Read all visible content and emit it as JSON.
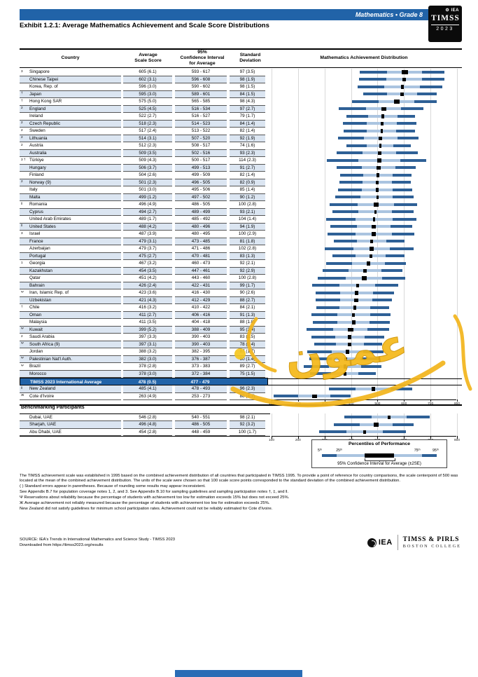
{
  "header": {
    "banner": "Mathematics • Grade 8",
    "exhibit_title": "Exhibit 1.2.1: Average Mathematics Achievement and Scale Score Distributions",
    "logo": {
      "iea": "IEA",
      "timss": "TIMSS",
      "year": "2023",
      "gear_icon": "⚙"
    }
  },
  "table": {
    "headers": {
      "country": "Country",
      "avg": "Average\nScale Score",
      "ci": "95%\nConfidence Interval\nfor Average",
      "sd": "Standard\nDeviation",
      "dist": "Mathematics Achievement Distribution"
    },
    "rows": [
      {
        "n": "3",
        "c": "Singapore",
        "a": "605 (6.1)",
        "i": "593 - 617",
        "s": "97 (3.5)",
        "d": [
          435,
          538,
          671,
          755,
          593,
          617
        ],
        "sh": false
      },
      {
        "n": "",
        "c": "Chinese Taipei",
        "a": "602 (3.1)",
        "i": "596 - 608",
        "s": "98 (1.9)",
        "d": [
          431,
          534,
          669,
          754,
          596,
          608
        ],
        "sh": true
      },
      {
        "n": "",
        "c": "Korea, Rep. of",
        "a": "596 (3.0)",
        "i": "590 - 602",
        "s": "98 (1.5)",
        "d": [
          425,
          528,
          663,
          748,
          590,
          602
        ],
        "sh": false
      },
      {
        "n": "†",
        "c": "Japan",
        "a": "595 (3.0)",
        "i": "589 - 601",
        "s": "84 (1.5)",
        "d": [
          448,
          537,
          652,
          725,
          589,
          601
        ],
        "sh": true
      },
      {
        "n": "†",
        "c": "Hong Kong SAR",
        "a": "575 (5.0)",
        "i": "565 - 585",
        "s": "98 (4.3)",
        "d": [
          404,
          507,
          642,
          727,
          565,
          585
        ],
        "sh": false
      },
      {
        "n": "2",
        "c": "England",
        "a": "525 (4.5)",
        "i": "516 - 534",
        "s": "97 (2.7)",
        "d": [
          355,
          458,
          591,
          675,
          516,
          534
        ],
        "sh": true
      },
      {
        "n": "",
        "c": "Ireland",
        "a": "522 (2.7)",
        "i": "516 - 527",
        "s": "79 (1.7)",
        "d": [
          384,
          467,
          576,
          644,
          516,
          527
        ],
        "sh": false
      },
      {
        "n": "2",
        "c": "Czech Republic",
        "a": "518 (2.3)",
        "i": "514 - 523",
        "s": "84 (1.4)",
        "d": [
          371,
          460,
          575,
          648,
          514,
          523
        ],
        "sh": true
      },
      {
        "n": "2",
        "c": "Sweden",
        "a": "517 (2.4)",
        "i": "513 - 522",
        "s": "82 (1.4)",
        "d": [
          374,
          460,
          573,
          644,
          513,
          522
        ],
        "sh": false
      },
      {
        "n": "2",
        "c": "Lithuania",
        "a": "514 (3.1)",
        "i": "507 - 520",
        "s": "92 (1.9)",
        "d": [
          353,
          451,
          577,
          657,
          507,
          520
        ],
        "sh": true
      },
      {
        "n": "2",
        "c": "Austria",
        "a": "512 (2.3)",
        "i": "508 - 517",
        "s": "74 (1.6)",
        "d": [
          383,
          461,
          562,
          627,
          508,
          517
        ],
        "sh": false
      },
      {
        "n": "",
        "c": "Australia",
        "a": "509 (3.5)",
        "i": "502 - 516",
        "s": "93 (2.3)",
        "d": [
          346,
          445,
          572,
          653,
          502,
          516
        ],
        "sh": true
      },
      {
        "n": "3 †",
        "c": "Türkiye",
        "a": "509 (4.3)",
        "i": "500 - 517",
        "s": "114 (2.3)",
        "d": [
          310,
          430,
          587,
          686,
          500,
          517
        ],
        "sh": false
      },
      {
        "n": "",
        "c": "Hungary",
        "a": "506 (3.7)",
        "i": "499 - 513",
        "s": "91 (2.7)",
        "d": [
          347,
          443,
          568,
          647,
          499,
          513
        ],
        "sh": true
      },
      {
        "n": "",
        "c": "Finland",
        "a": "504 (2.6)",
        "i": "499 - 509",
        "s": "82 (1.4)",
        "d": [
          361,
          447,
          560,
          631,
          499,
          509
        ],
        "sh": false
      },
      {
        "n": "2",
        "c": "Norway (9)",
        "a": "501 (2.3)",
        "i": "496 - 505",
        "s": "82 (0.9)",
        "d": [
          358,
          444,
          557,
          628,
          496,
          505
        ],
        "sh": true
      },
      {
        "n": "",
        "c": "Italy",
        "a": "501 (3.0)",
        "i": "495 - 506",
        "s": "85 (1.4)",
        "d": [
          352,
          442,
          559,
          633,
          495,
          506
        ],
        "sh": false
      },
      {
        "n": "",
        "c": "Malta",
        "a": "499 (1.2)",
        "i": "497 - 502",
        "s": "90 (1.2)",
        "d": [
          342,
          437,
          560,
          639,
          497,
          502
        ],
        "sh": true
      },
      {
        "n": "ǁ",
        "c": "Romania",
        "a": "496 (4.9)",
        "i": "486 - 505",
        "s": "100 (2.8)",
        "d": [
          321,
          427,
          564,
          651,
          486,
          505
        ],
        "sh": false
      },
      {
        "n": "",
        "c": "Cyprus",
        "a": "494 (2.7)",
        "i": "489 - 499",
        "s": "93 (2.1)",
        "d": [
          331,
          430,
          557,
          638,
          489,
          499
        ],
        "sh": true
      },
      {
        "n": "",
        "c": "United Arab Emirates",
        "a": "489 (1.7)",
        "i": "485 - 492",
        "s": "104 (1.4)",
        "d": [
          307,
          417,
          560,
          650,
          485,
          492
        ],
        "sh": false
      },
      {
        "n": "ǁ",
        "c": "United States",
        "a": "488 (4.2)",
        "i": "480 - 496",
        "s": "94 (1.9)",
        "d": [
          324,
          423,
          552,
          634,
          480,
          496
        ],
        "sh": true
      },
      {
        "n": "3",
        "c": "Israel",
        "a": "487 (3.9)",
        "i": "480 - 495",
        "s": "100 (2.9)",
        "d": [
          312,
          418,
          555,
          642,
          480,
          495
        ],
        "sh": false
      },
      {
        "n": "",
        "c": "France",
        "a": "479 (3.1)",
        "i": "473 - 485",
        "s": "81 (1.8)",
        "d": [
          337,
          423,
          534,
          605,
          473,
          485
        ],
        "sh": true
      },
      {
        "n": "",
        "c": "Azerbaijan",
        "a": "479 (3.7)",
        "i": "471 - 486",
        "s": "102 (2.8)",
        "d": [
          301,
          409,
          548,
          637,
          471,
          486
        ],
        "sh": false
      },
      {
        "n": "",
        "c": "Portugal",
        "a": "475 (2.7)",
        "i": "470 - 481",
        "s": "83 (1.3)",
        "d": [
          330,
          418,
          531,
          604,
          470,
          481
        ],
        "sh": true
      },
      {
        "n": "1",
        "c": "Georgia",
        "a": "467 (3.2)",
        "i": "460 - 473",
        "s": "92 (2.1)",
        "d": [
          306,
          404,
          530,
          610,
          460,
          473
        ],
        "sh": false
      },
      {
        "n": "",
        "c": "Kazakhstan",
        "a": "454 (3.5)",
        "i": "447 - 461",
        "s": "92 (2.9)",
        "d": [
          293,
          391,
          517,
          597,
          447,
          461
        ],
        "sh": true
      },
      {
        "n": "",
        "c": "Qatar",
        "a": "451 (4.2)",
        "i": "443 - 460",
        "s": "100 (2.8)",
        "d": [
          276,
          382,
          519,
          606,
          443,
          460
        ],
        "sh": false
      },
      {
        "n": "",
        "c": "Bahrain",
        "a": "426 (2.4)",
        "i": "422 - 431",
        "s": "99 (1.7)",
        "d": [
          253,
          358,
          493,
          579,
          422,
          431
        ],
        "sh": true
      },
      {
        "n": "Ψ",
        "c": "Iran, Islamic Rep. of",
        "a": "423 (3.6)",
        "i": "416 - 430",
        "s": "90 (2.6)",
        "d": [
          266,
          361,
          484,
          563,
          416,
          430
        ],
        "sh": false
      },
      {
        "n": "",
        "c": "Uzbekistan",
        "a": "421 (4.3)",
        "i": "412 - 429",
        "s": "88 (2.7)",
        "d": [
          267,
          360,
          481,
          557,
          412,
          429
        ],
        "sh": true
      },
      {
        "n": "†",
        "c": "Chile",
        "a": "416 (3.2)",
        "i": "410 - 422",
        "s": "84 (2.1)",
        "d": [
          269,
          358,
          473,
          546,
          410,
          422
        ],
        "sh": false
      },
      {
        "n": "",
        "c": "Oman",
        "a": "411 (2.7)",
        "i": "406 - 416",
        "s": "91 (1.3)",
        "d": [
          252,
          348,
          473,
          552,
          406,
          416
        ],
        "sh": true
      },
      {
        "n": "",
        "c": "Malaysia",
        "a": "411 (3.5)",
        "i": "404 - 418",
        "s": "88 (1.8)",
        "d": [
          257,
          350,
          471,
          547,
          404,
          418
        ],
        "sh": false
      },
      {
        "n": "Ψ",
        "c": "Kuwait",
        "a": "399 (5.2)",
        "i": "388 - 409",
        "s": "95 (3.4)",
        "d": [
          233,
          333,
          464,
          546,
          388,
          409
        ],
        "sh": true
      },
      {
        "n": "2",
        "c": "Saudi Arabia",
        "a": "397 (3.3)",
        "i": "390 - 403",
        "s": "83 (1.5)",
        "d": [
          252,
          340,
          453,
          526,
          390,
          403
        ],
        "sh": false
      },
      {
        "n": "Ψ",
        "c": "South Africa (9)",
        "a": "397 (3.1)",
        "i": "390 - 403",
        "s": "78 (2.4)",
        "d": [
          261,
          343,
          450,
          518,
          390,
          403
        ],
        "sh": true
      },
      {
        "n": "",
        "c": "Jordan",
        "a": "388 (3.2)",
        "i": "382 - 395",
        "s": "87 (1.7)",
        "d": [
          236,
          328,
          447,
          523,
          382,
          395
        ],
        "sh": false
      },
      {
        "n": "Ψ",
        "c": "Palestinian Nat'l Auth.",
        "a": "382 (3.0)",
        "i": "376 - 387",
        "s": "80 (1.4)",
        "d": [
          242,
          327,
          436,
          506,
          376,
          387
        ],
        "sh": true
      },
      {
        "n": "Ψ",
        "c": "Brazil",
        "a": "378 (2.8)",
        "i": "373 - 383",
        "s": "89 (2.7)",
        "d": [
          222,
          317,
          439,
          516,
          373,
          383
        ],
        "sh": false
      },
      {
        "n": "",
        "c": "Morocco",
        "a": "378 (3.0)",
        "i": "372 - 384",
        "s": "75 (1.5)",
        "d": [
          247,
          326,
          429,
          494,
          372,
          384
        ],
        "sh": true
      }
    ],
    "international_average": {
      "label": "TIMSS 2023 International Average",
      "avg": "478 (0.5)",
      "ci": "477 - 479",
      "sd": ""
    },
    "rows_after": [
      {
        "n": "ǁ",
        "c": "New Zealand",
        "a": "485 (4.1)",
        "i": "478 - 493",
        "s": "96 (2.3)",
        "d": [
          317,
          419,
          550,
          634,
          478,
          493
        ],
        "sh": true
      },
      {
        "n": "Ж",
        "c": "Cote d'Ivoire",
        "a": "263 (4.9)",
        "i": "253 - 273",
        "s": "88 (4.7)",
        "d": [
          109,
          202,
          323,
          399,
          253,
          273
        ],
        "sh": false
      }
    ],
    "benchmark_header": "Benchmarking Participants",
    "benchmark_rows": [
      {
        "n": "",
        "c": "Dubai, UAE",
        "a": "546 (2.8)",
        "i": "540 - 551",
        "s": "98 (2.1)",
        "d": [
          375,
          478,
          613,
          698,
          540,
          551
        ],
        "sh": false
      },
      {
        "n": "",
        "c": "Sharjah, UAE",
        "a": "496 (4.8)",
        "i": "486 - 505",
        "s": "92 (3.2)",
        "d": [
          335,
          433,
          559,
          639,
          486,
          505
        ],
        "sh": true
      },
      {
        "n": "",
        "c": "Abu Dhabi, UAE",
        "a": "454 (2.8)",
        "i": "448 - 459",
        "s": "100 (1.7)",
        "d": [
          279,
          385,
          522,
          609,
          448,
          459
        ],
        "sh": false
      }
    ]
  },
  "axis": {
    "ticks": [
      100,
      200,
      300,
      400,
      500,
      600,
      700,
      800
    ]
  },
  "legend": {
    "title": "Percentiles of Performance",
    "labels": [
      "5ᵗʰ",
      "25ᵗʰ",
      "75ᵗʰ",
      "95ᵗʰ"
    ],
    "caption": "95% Confidence Interval for Average (±2SE)"
  },
  "footnotes": [
    "The TIMSS achievement scale was established in 1995 based on the combined achievement distribution of all countries that participated in TIMSS 1995. To provide a point of reference for country comparisons, the scale centerpoint of 500 was located at the mean of the combined achievement distribution. The units of the scale were chosen so that 100 scale score points corresponded to the standard deviation of the combined achievement distribution.",
    "( ) Standard errors appear in parentheses. Because of rounding some results may appear inconsistent.",
    "See Appendix B.7 for population coverage notes 1, 2, and 3. See Appendix B.10 for sampling guidelines and sampling participation notes †, ‡, and ǁ.",
    "Ψ Reservations about reliability because the percentage of students with achievement too low for estimation exceeds 15% but does not exceed 25%.",
    "Ж Average achievement not reliably measured because the percentage of students with achievement too low for estimation exceeds 25%.",
    "New Zealand did not satisfy guidelines for minimum school participation rates. Achievement could not be reliably estimated for Cote d'Ivoire."
  ],
  "source": {
    "line1": "SOURCE: IEA's Trends in International Mathematics and Science Study - TIMSS 2023",
    "line2": "Downloaded from https://timss2023.org/results"
  },
  "footer_logos": {
    "iea": "IEA",
    "timss_pirls": "TIMSS & PIRLS",
    "boston_college": "BOSTON COLLEGE"
  },
  "watermark": {
    "text": "عمون"
  },
  "colors": {
    "banner_blue": "#2163a8",
    "row_shade": "#dbe5f1",
    "bar_dark": "#2e6096",
    "bar_light": "#aac4e0",
    "ci_box": "#000000",
    "watermark_gold": "#f2b51c"
  }
}
